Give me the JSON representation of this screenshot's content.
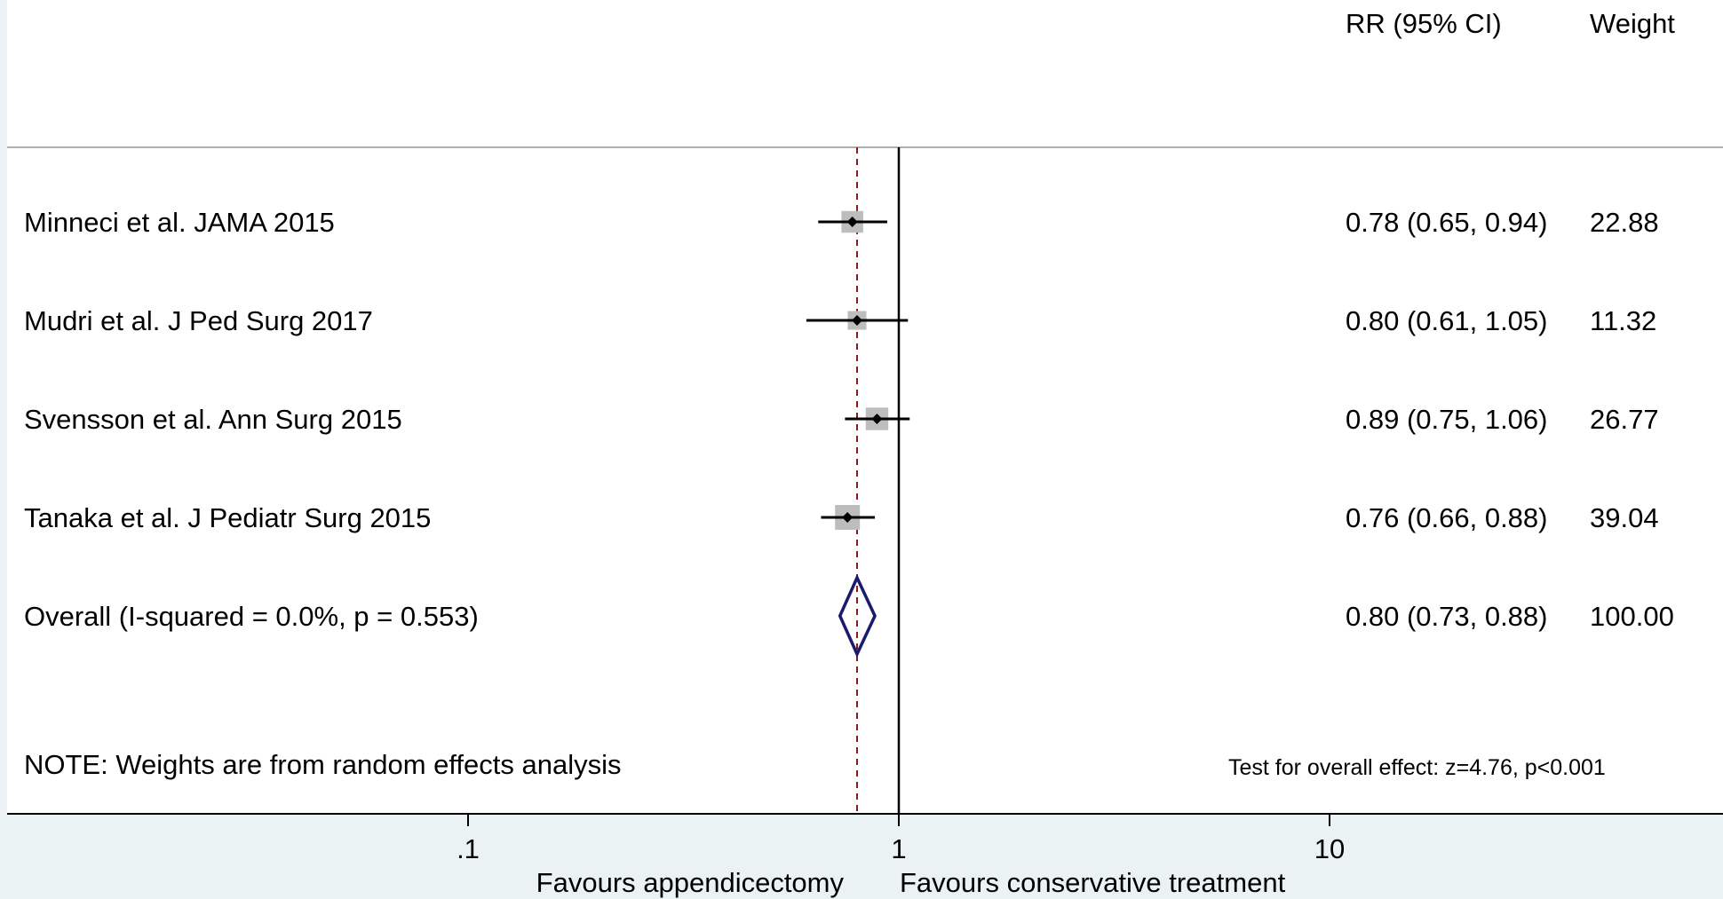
{
  "chart_data": {
    "type": "forest",
    "x_scale": "log",
    "xlim": [
      0.05,
      40
    ],
    "ticks": [
      {
        "value": 0.1,
        "label": ".1"
      },
      {
        "value": 1,
        "label": "1"
      },
      {
        "value": 10,
        "label": "10"
      }
    ],
    "favours_left": "Favours appendicectomy",
    "favours_right": "Favours conservative treatment",
    "columns": {
      "effect": "RR (95% CI)",
      "weight": "Weight"
    },
    "null_line": 1,
    "pooled_line": 0.8,
    "studies": [
      {
        "label": "Minneci et al. JAMA 2015",
        "rr": 0.78,
        "lo": 0.65,
        "hi": 0.94,
        "weight": 22.88,
        "rr_text": "0.78 (0.65, 0.94)",
        "weight_text": "22.88"
      },
      {
        "label": "Mudri et al. J Ped Surg 2017",
        "rr": 0.8,
        "lo": 0.61,
        "hi": 1.05,
        "weight": 11.32,
        "rr_text": "0.80 (0.61, 1.05)",
        "weight_text": "11.32"
      },
      {
        "label": "Svensson et al. Ann Surg 2015",
        "rr": 0.89,
        "lo": 0.75,
        "hi": 1.06,
        "weight": 26.77,
        "rr_text": "0.89 (0.75, 1.06)",
        "weight_text": "26.77"
      },
      {
        "label": "Tanaka et al. J Pediatr Surg 2015",
        "rr": 0.76,
        "lo": 0.66,
        "hi": 0.88,
        "weight": 39.04,
        "rr_text": "0.76 (0.66, 0.88)",
        "weight_text": "39.04"
      }
    ],
    "overall": {
      "label": "Overall  (I-squared = 0.0%, p = 0.553)",
      "rr": 0.8,
      "lo": 0.73,
      "hi": 0.88,
      "rr_text": "0.80 (0.73, 0.88)",
      "weight_text": "100.00"
    },
    "note": "NOTE: Weights are from random effects analysis",
    "test_text": "Test for overall effect: z=4.76, p<0.001",
    "colors": {
      "plot_background": "#ffffff",
      "outer_background": "#eaf2f3",
      "marker_box": "#bdbdbd",
      "diamond": "#1a1a6e",
      "pooled_line": "#8b1a1a"
    }
  }
}
